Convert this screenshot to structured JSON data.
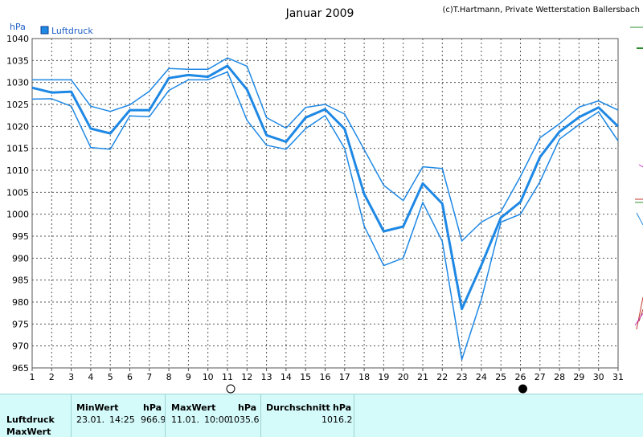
{
  "chart_data": {
    "type": "line",
    "title": "Januar 2009",
    "credit": "(c)T.Hartmann, Private Wetterstation Ballersbach",
    "ylabel": "hPa",
    "legend": "Luftdruck",
    "legend_position": "top-left",
    "grid": true,
    "ylim": [
      965,
      1040
    ],
    "yticks": [
      965,
      970,
      975,
      980,
      985,
      990,
      995,
      1000,
      1005,
      1010,
      1015,
      1020,
      1025,
      1030,
      1035,
      1040
    ],
    "x": [
      1,
      2,
      3,
      4,
      5,
      6,
      7,
      8,
      9,
      10,
      11,
      12,
      13,
      14,
      15,
      16,
      17,
      18,
      19,
      20,
      21,
      22,
      23,
      24,
      25,
      26,
      27,
      28,
      29,
      30,
      31
    ],
    "series": [
      {
        "role": "max",
        "values": [
          1030.6,
          1030.6,
          1030.6,
          1024.6,
          1023.4,
          1024.9,
          1028.0,
          1033.2,
          1033.0,
          1033.0,
          1035.6,
          1033.7,
          1022.0,
          1019.6,
          1024.3,
          1025.0,
          1022.8,
          1014.7,
          1006.6,
          1003.1,
          1010.8,
          1010.4,
          993.9,
          998.2,
          1000.6,
          1008.6,
          1017.4,
          1020.6,
          1024.4,
          1025.8,
          1023.7
        ]
      },
      {
        "role": "avg",
        "values": [
          1028.8,
          1027.7,
          1027.9,
          1019.5,
          1018.4,
          1023.7,
          1023.7,
          1031.0,
          1031.7,
          1031.3,
          1033.8,
          1028.4,
          1018.0,
          1016.5,
          1022.0,
          1023.9,
          1019.4,
          1004.6,
          996.1,
          997.2,
          1007.0,
          1002.4,
          978.4,
          988.4,
          999.2,
          1002.8,
          1013.0,
          1018.8,
          1022.1,
          1024.3,
          1020.0
        ]
      },
      {
        "role": "min",
        "values": [
          1026.2,
          1026.3,
          1024.6,
          1015.2,
          1014.8,
          1022.4,
          1022.2,
          1028.2,
          1030.6,
          1030.6,
          1032.4,
          1021.4,
          1015.7,
          1014.8,
          1019.5,
          1022.5,
          1015.0,
          997.3,
          988.3,
          990.0,
          1002.7,
          993.8,
          966.9,
          980.6,
          998.2,
          1000.0,
          1007.4,
          1017.1,
          1020.4,
          1023.3,
          1016.7
        ]
      }
    ],
    "moon": {
      "full_day": 11,
      "new_day": 26
    }
  },
  "stats": {
    "row_label": "Luftdruck",
    "row_label_2": "MaxWert",
    "min_header": "MinWert",
    "unit": "hPa",
    "min_date": "23.01.",
    "min_time": "14:25",
    "min_value": "966.9",
    "max_header": "MaxWert",
    "max_date": "11.01.",
    "max_time": "10:00",
    "max_value": "1035.6",
    "avg_header": "Durchschnitt",
    "avg_value": "1016.2"
  },
  "colors": {
    "line": "#1e88e5",
    "grid": "#555555",
    "legend": "#1e5fc8",
    "background": "#ffffff",
    "stats_bg": "#d4fafa"
  }
}
